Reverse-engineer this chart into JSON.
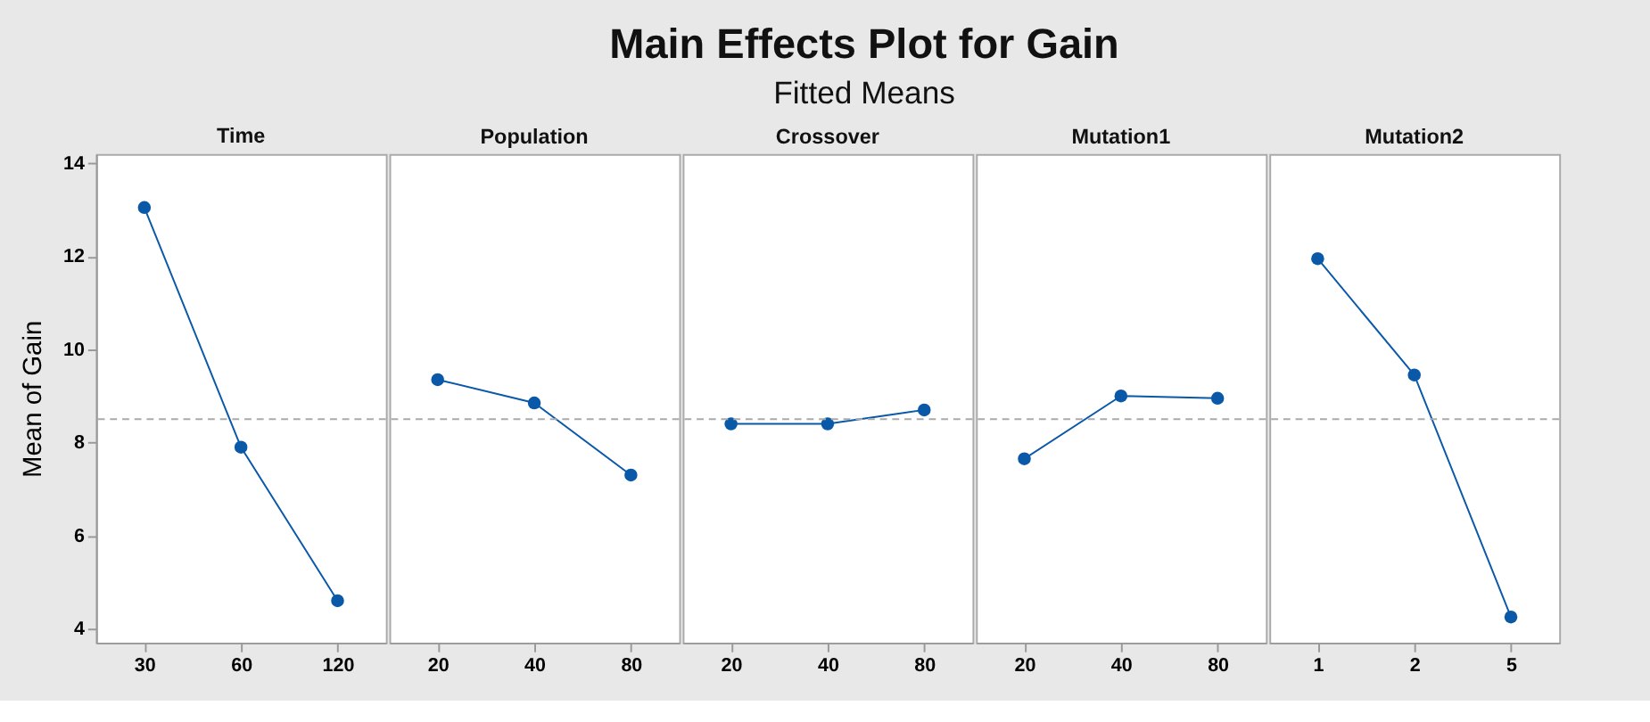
{
  "chart_data": [
    {
      "type": "other",
      "title": "Main Effects Plot for Gain",
      "subtitle": "Fitted Means"
    },
    {
      "type": "line",
      "xlabel": "Time",
      "ylabel": "Mean of Gain",
      "categories": [
        "30",
        "60",
        "120"
      ],
      "series": [
        {
          "color": "#0a58a8",
          "values": [
            13.05,
            7.9,
            4.6
          ]
        }
      ],
      "ylim": [
        3.7,
        14.2
      ],
      "yticks": [
        4,
        6,
        8,
        10,
        12,
        14
      ],
      "ref_lines": [
        {
          "axis": "y",
          "value": 8.5,
          "line_style": "dashed",
          "color": "#aaaaaa"
        }
      ],
      "marker": "circle",
      "line_style": "solid"
    },
    {
      "type": "line",
      "xlabel": "Population",
      "categories": [
        "20",
        "40",
        "80"
      ],
      "series": [
        {
          "color": "#0a58a8",
          "values": [
            9.35,
            8.85,
            7.3
          ]
        }
      ],
      "ylim": [
        3.7,
        14.2
      ],
      "tick_labels": "x",
      "ref_lines": [
        {
          "axis": "y",
          "value": 8.5,
          "line_style": "dashed",
          "color": "#aaaaaa"
        }
      ],
      "marker": "circle",
      "line_style": "solid"
    },
    {
      "type": "line",
      "xlabel": "Crossover",
      "categories": [
        "20",
        "40",
        "80"
      ],
      "series": [
        {
          "color": "#0a58a8",
          "values": [
            8.4,
            8.4,
            8.7
          ]
        }
      ],
      "ylim": [
        3.7,
        14.2
      ],
      "tick_labels": "x",
      "ref_lines": [
        {
          "axis": "y",
          "value": 8.5,
          "line_style": "dashed",
          "color": "#aaaaaa"
        }
      ],
      "marker": "circle",
      "line_style": "solid"
    },
    {
      "type": "line",
      "xlabel": "Mutation1",
      "categories": [
        "20",
        "40",
        "80"
      ],
      "series": [
        {
          "color": "#0a58a8",
          "values": [
            7.65,
            9.0,
            8.95
          ]
        }
      ],
      "ylim": [
        3.7,
        14.2
      ],
      "tick_labels": "x",
      "ref_lines": [
        {
          "axis": "y",
          "value": 8.5,
          "line_style": "dashed",
          "color": "#aaaaaa"
        }
      ],
      "marker": "circle",
      "line_style": "solid"
    },
    {
      "type": "line",
      "xlabel": "Mutation2",
      "categories": [
        "1",
        "2",
        "5"
      ],
      "series": [
        {
          "color": "#0a58a8",
          "values": [
            11.95,
            9.45,
            4.25
          ]
        }
      ],
      "ylim": [
        3.7,
        14.2
      ],
      "tick_labels": "x",
      "ref_lines": [
        {
          "axis": "y",
          "value": 8.5,
          "line_style": "dashed",
          "color": "#aaaaaa"
        }
      ],
      "marker": "circle",
      "line_style": "solid"
    }
  ]
}
